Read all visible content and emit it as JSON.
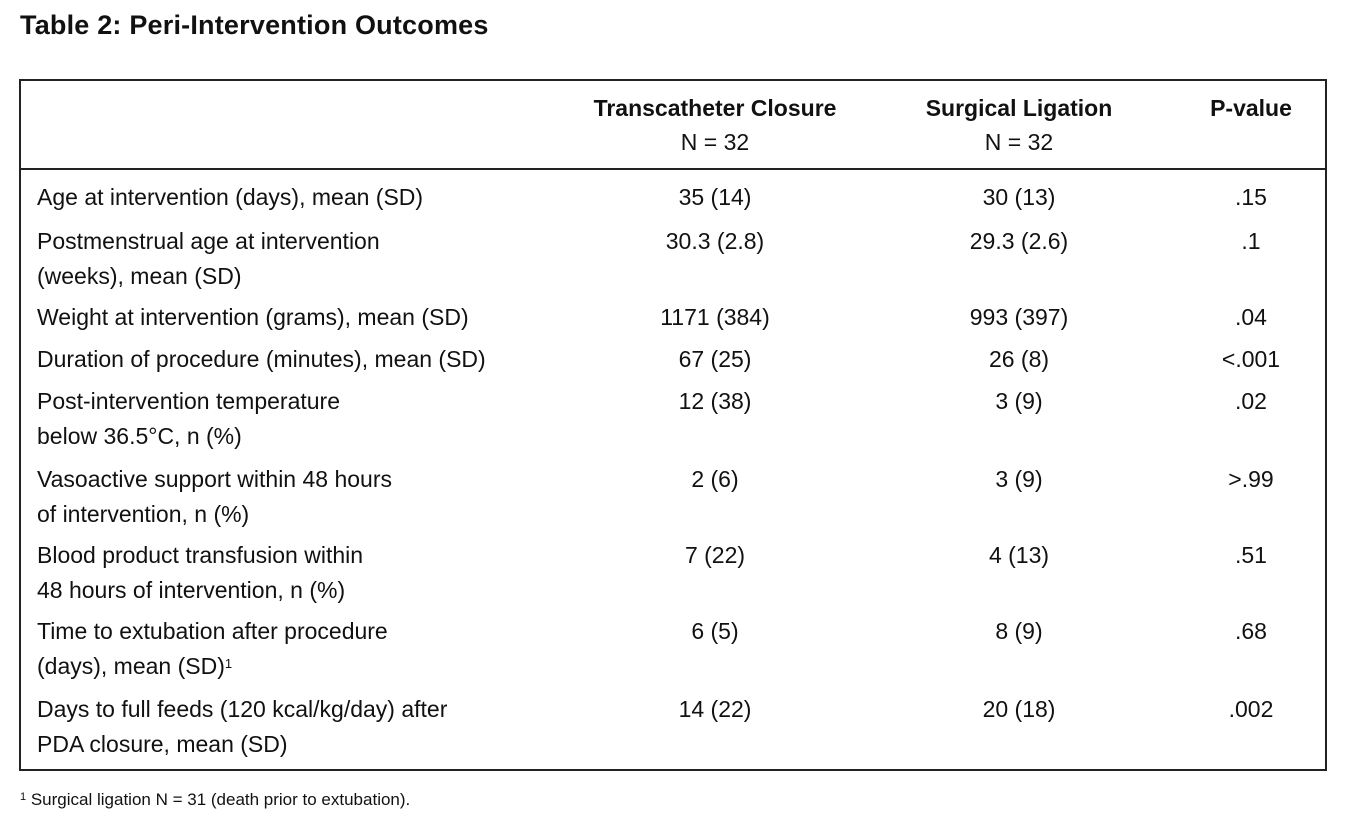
{
  "title": "Table 2: Peri-Intervention Outcomes",
  "columns": [
    {
      "label": "Transcatheter Closure",
      "n": "N = 32"
    },
    {
      "label": "Surgical Ligation",
      "n": "N = 32"
    },
    {
      "label": "P-value",
      "n": ""
    }
  ],
  "rows": [
    {
      "label_lines": [
        "Age at intervention (days), mean (SD)"
      ],
      "sup": "",
      "transcatheter": "35 (14)",
      "surgical": "30 (13)",
      "p": ".15"
    },
    {
      "label_lines": [
        "Postmenstrual age at intervention",
        "(weeks), mean (SD)"
      ],
      "sup": "",
      "transcatheter": "30.3 (2.8)",
      "surgical": "29.3 (2.6)",
      "p": ".1"
    },
    {
      "label_lines": [
        "Weight at intervention (grams), mean (SD)"
      ],
      "sup": "",
      "transcatheter": "1171 (384)",
      "surgical": "993 (397)",
      "p": ".04"
    },
    {
      "label_lines": [
        "Duration of procedure (minutes), mean (SD)"
      ],
      "sup": "",
      "transcatheter": "67 (25)",
      "surgical": "26 (8)",
      "p": "<.001"
    },
    {
      "label_lines": [
        "Post-intervention temperature",
        "below 36.5°C, n (%)"
      ],
      "sup": "",
      "transcatheter": "12 (38)",
      "surgical": "3 (9)",
      "p": ".02"
    },
    {
      "label_lines": [
        "Vasoactive support within 48 hours",
        "of intervention, n (%)"
      ],
      "sup": "",
      "transcatheter": "2 (6)",
      "surgical": "3 (9)",
      "p": ">.99"
    },
    {
      "label_lines": [
        "Blood product transfusion within",
        "48 hours of intervention, n (%)"
      ],
      "sup": "",
      "transcatheter": "7 (22)",
      "surgical": "4 (13)",
      "p": ".51"
    },
    {
      "label_lines": [
        "Time to extubation after procedure",
        "(days), mean (SD)"
      ],
      "sup": "1",
      "transcatheter": "6 (5)",
      "surgical": "8 (9)",
      "p": ".68"
    },
    {
      "label_lines": [
        "Days to full feeds (120 kcal/kg/day) after",
        "PDA closure, mean (SD)"
      ],
      "sup": "",
      "transcatheter": "14 (22)",
      "surgical": "20 (18)",
      "p": ".002"
    }
  ],
  "footnote": {
    "marker": "1",
    "text": " Surgical ligation N = 31 (death prior to extubation)."
  }
}
